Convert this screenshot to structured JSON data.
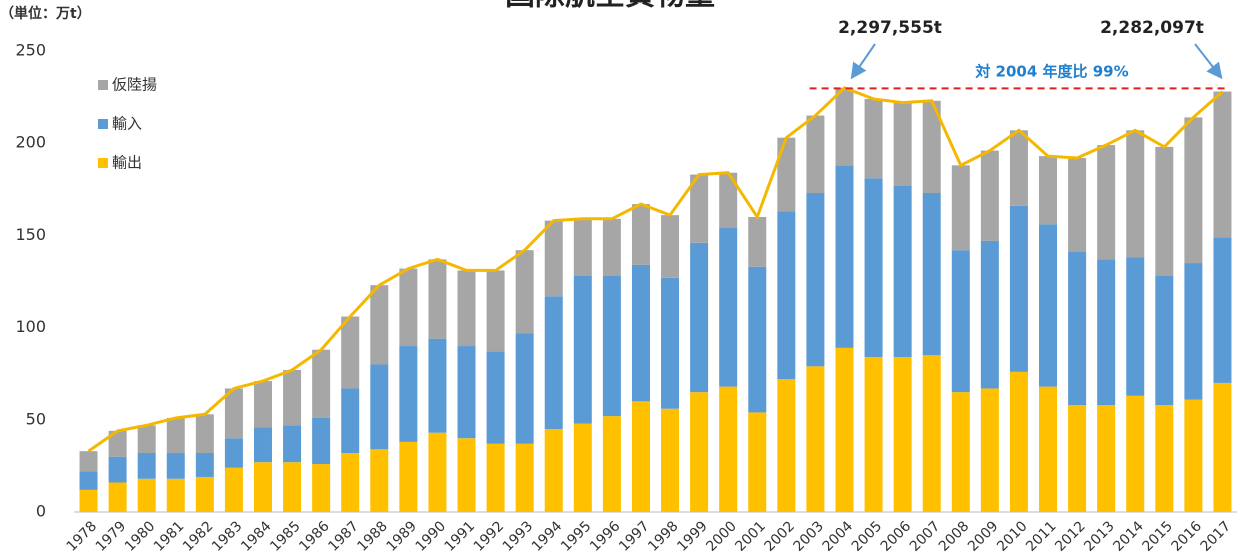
{
  "chart_data": {
    "type": "bar",
    "stacked": true,
    "title": "国際航空貨物量",
    "unit_label": "（単位：万t）",
    "categories": [
      "1978",
      "1979",
      "1980",
      "1981",
      "1982",
      "1983",
      "1984",
      "1985",
      "1986",
      "1987",
      "1988",
      "1989",
      "1990",
      "1991",
      "1992",
      "1993",
      "1994",
      "1995",
      "1996",
      "1997",
      "1998",
      "1999",
      "2000",
      "2001",
      "2002",
      "2003",
      "2004",
      "2005",
      "2006",
      "2007",
      "2008",
      "2009",
      "2010",
      "2011",
      "2012",
      "2013",
      "2014",
      "2015",
      "2016",
      "2017"
    ],
    "series": [
      {
        "name": "輸出",
        "color": "#ffc000",
        "values": [
          12,
          16,
          18,
          18,
          19,
          24,
          27,
          27,
          26,
          32,
          34,
          38,
          43,
          40,
          37,
          37,
          45,
          48,
          52,
          60,
          56,
          65,
          68,
          54,
          72,
          79,
          89,
          84,
          84,
          85,
          65,
          67,
          76,
          68,
          58,
          58,
          63,
          58,
          61,
          70
        ]
      },
      {
        "name": "輸入",
        "color": "#5b9bd5",
        "values": [
          10,
          14,
          14,
          14,
          13,
          16,
          19,
          20,
          25,
          35,
          46,
          52,
          51,
          50,
          50,
          60,
          72,
          80,
          76,
          74,
          71,
          81,
          86,
          79,
          91,
          94,
          99,
          97,
          93,
          88,
          77,
          80,
          90,
          88,
          83,
          79,
          75,
          70,
          74,
          79
        ]
      },
      {
        "name": "仮陸揚",
        "color": "#a6a6a6",
        "values": [
          11,
          14,
          15,
          19,
          21,
          27,
          25,
          30,
          37,
          39,
          43,
          42,
          43,
          41,
          44,
          45,
          41,
          31,
          31,
          33,
          34,
          37,
          30,
          27,
          40,
          42,
          42,
          43,
          45,
          50,
          46,
          49,
          41,
          37,
          51,
          62,
          69,
          70,
          79,
          79
        ]
      }
    ],
    "total_line_color": "#f5b800",
    "annotations": [
      "2,297,555t",
      "2,282,097t",
      "対 2004 年度比 99%"
    ],
    "reference_line": 229.76,
    "ylim": [
      0,
      250
    ],
    "yticks": [
      0,
      50,
      100,
      150,
      200,
      250
    ]
  }
}
